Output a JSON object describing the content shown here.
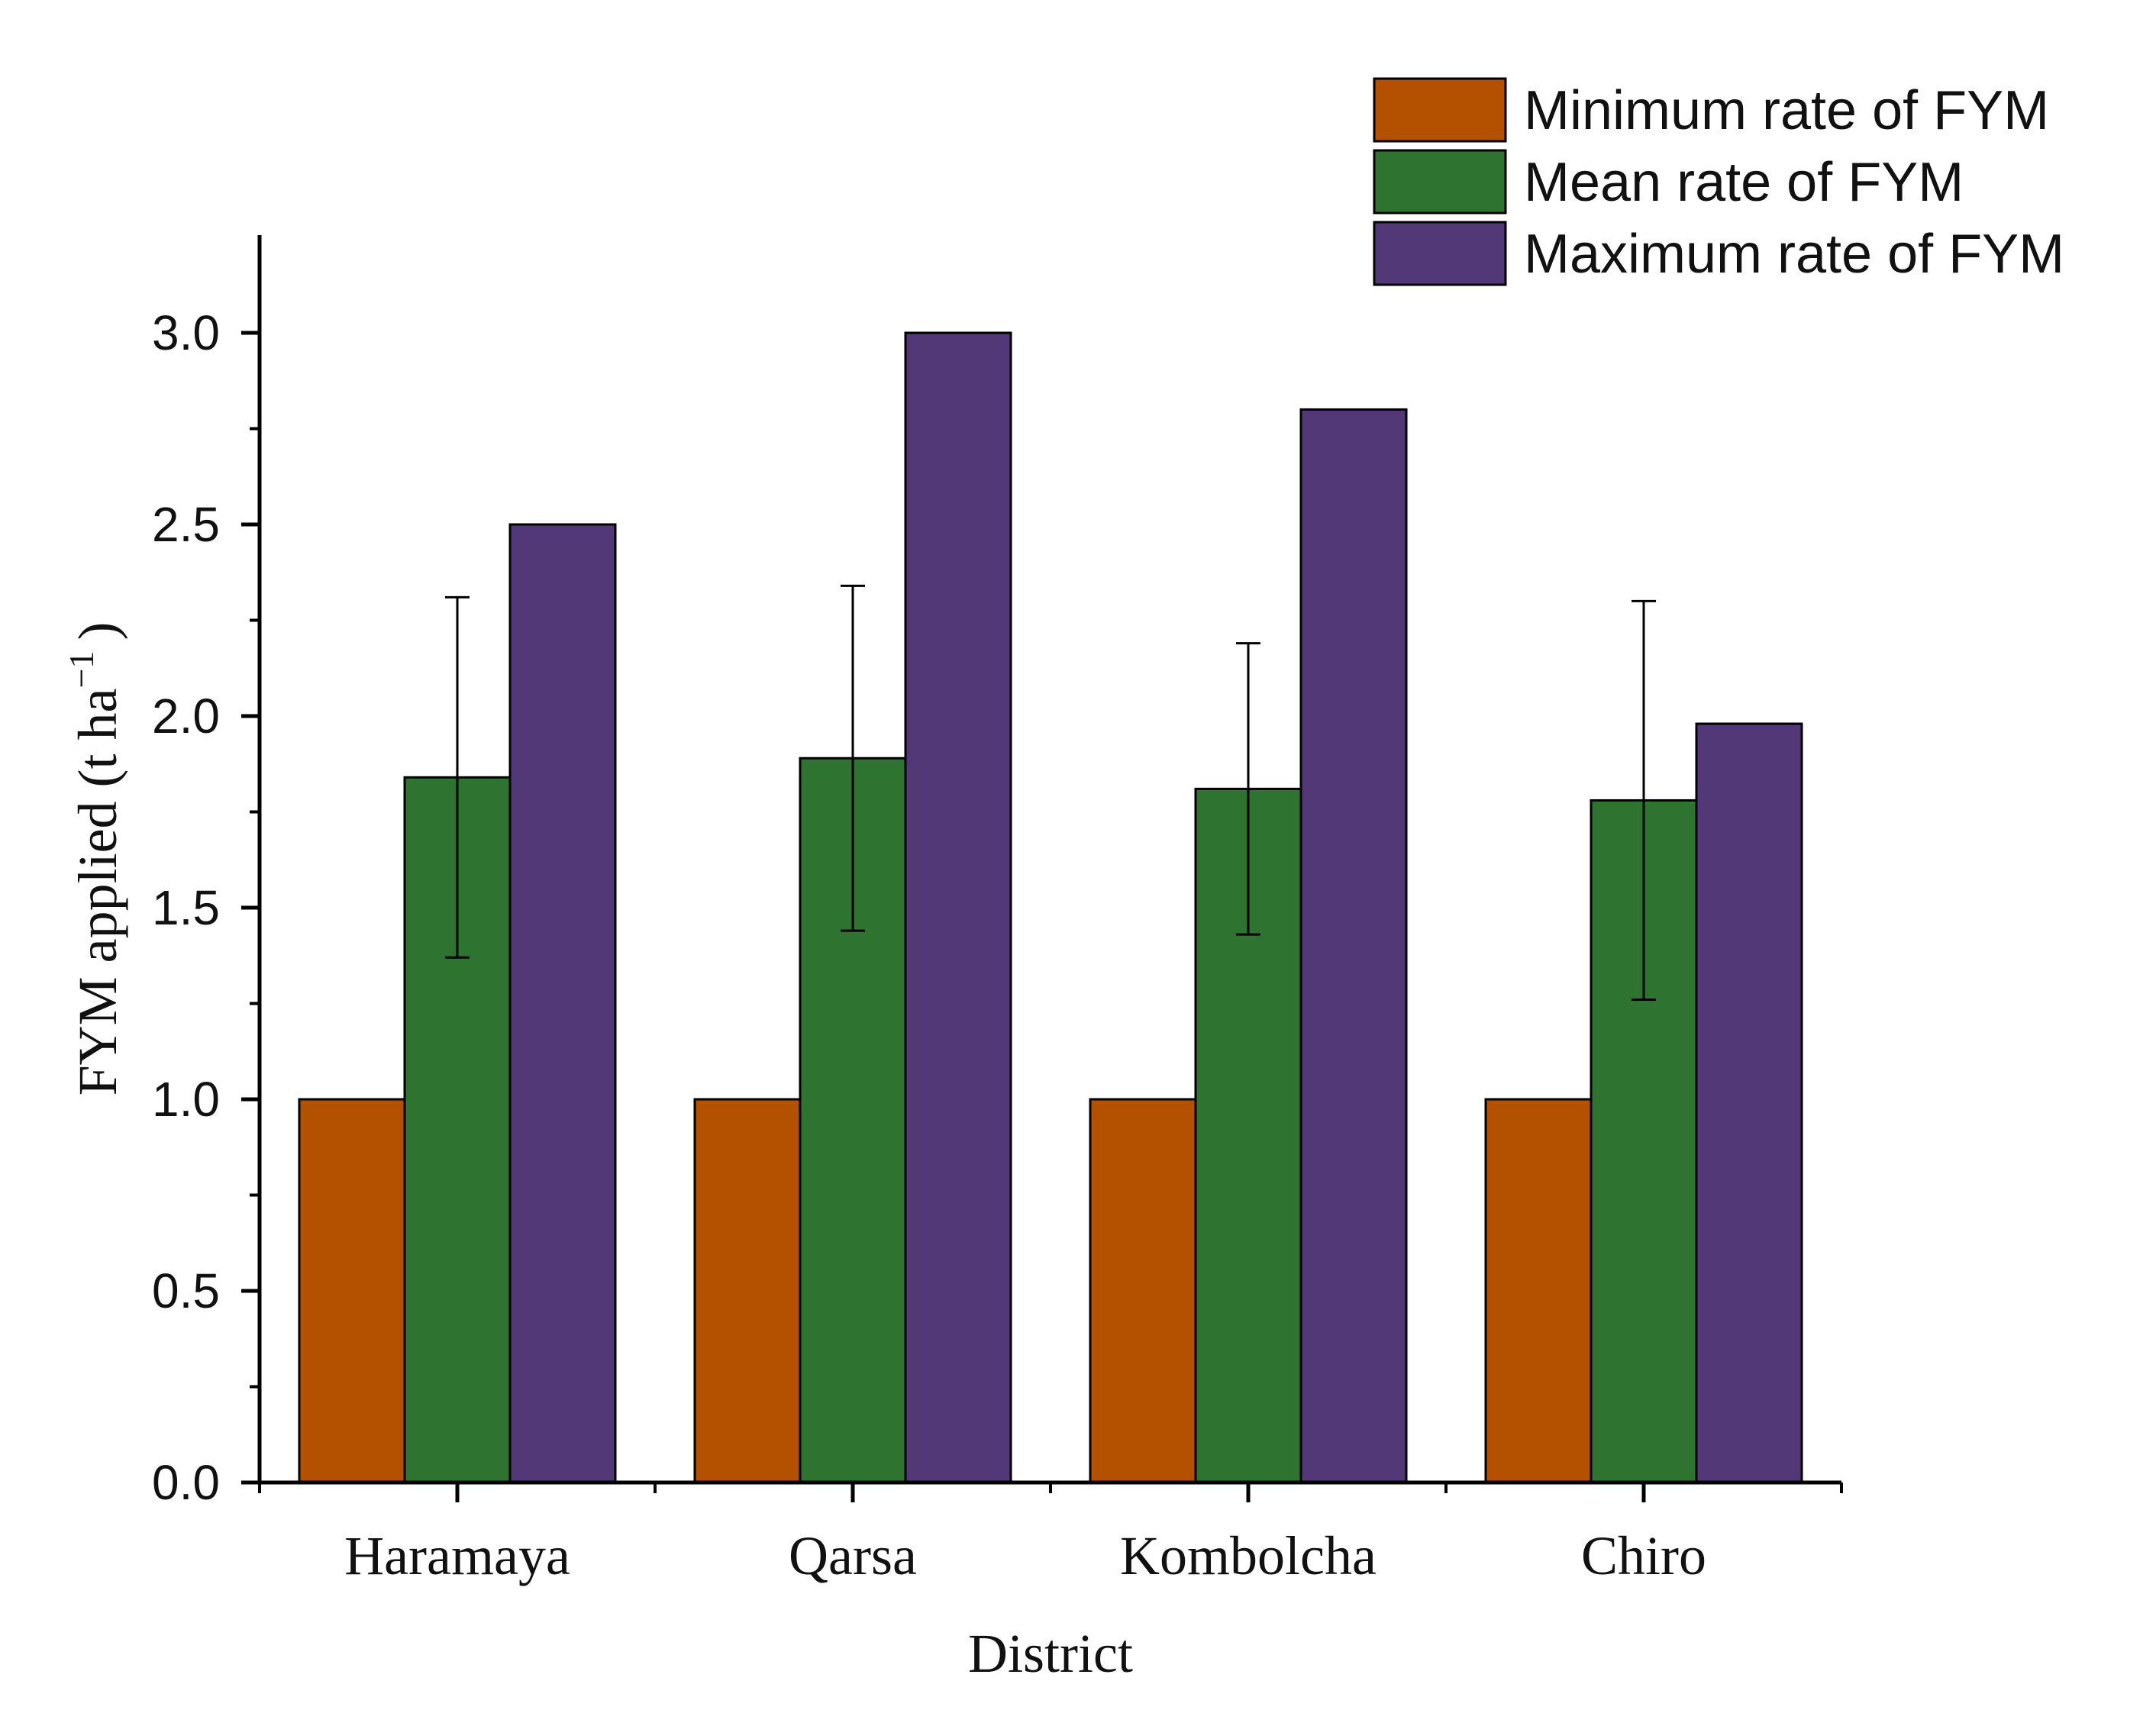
{
  "chart_data": {
    "type": "bar",
    "title": "",
    "xlabel": "District",
    "ylabel": "FYM applied (t ha",
    "ylabel_sup": "−1",
    "ylabel_close": ")",
    "categories": [
      "Haramaya",
      "Qarsa",
      "Kombolcha",
      "Chiro"
    ],
    "ylim": [
      0,
      3.25
    ],
    "yticks": [
      "0.0",
      "0.5",
      "1.0",
      "1.5",
      "2.0",
      "2.5",
      "3.0"
    ],
    "series": [
      {
        "name": "Minimum rate of FYM",
        "color": "#b35100",
        "values": [
          1.0,
          1.0,
          1.0,
          1.0
        ]
      },
      {
        "name": "Mean rate of FYM",
        "color": "#2e7430",
        "values": [
          1.84,
          1.89,
          1.81,
          1.78
        ],
        "error_low": [
          1.37,
          1.44,
          1.43,
          1.26
        ],
        "error_high": [
          2.31,
          2.34,
          2.19,
          2.3
        ]
      },
      {
        "name": "Maximum rate of FYM",
        "color": "#533877",
        "values": [
          2.5,
          3.0,
          2.8,
          1.98
        ]
      }
    ],
    "legend_position": "top-right",
    "grid": false
  }
}
